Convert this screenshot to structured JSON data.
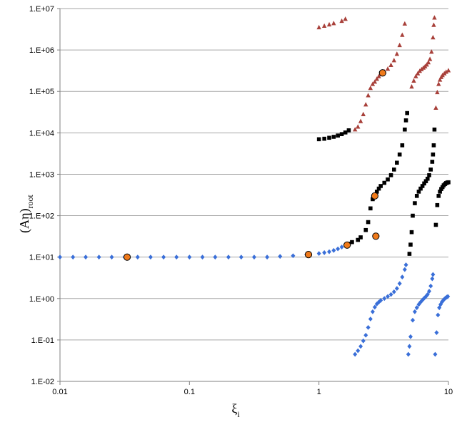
{
  "chart_data": {
    "type": "scatter",
    "xscale": "log",
    "yscale": "log",
    "xlim": [
      0.01,
      10
    ],
    "ylim": [
      0.01,
      10000000
    ],
    "grid": true,
    "legend": "none",
    "xlabel": {
      "main": "ξ",
      "sub": "i"
    },
    "ylabel": {
      "main": "(Aη)",
      "sub": "root"
    },
    "x_ticks": [
      {
        "value": 0.01,
        "label": "0.01"
      },
      {
        "value": 0.1,
        "label": "0.1"
      },
      {
        "value": 1,
        "label": "1"
      },
      {
        "value": 10,
        "label": "10"
      }
    ],
    "y_ticks": [
      {
        "value": 0.01,
        "label": "1.E-02"
      },
      {
        "value": 0.1,
        "label": "1.E-01"
      },
      {
        "value": 1,
        "label": "1.E+00"
      },
      {
        "value": 10,
        "label": "1.E+01"
      },
      {
        "value": 100,
        "label": "1.E+02"
      },
      {
        "value": 1000,
        "label": "1.E+03"
      },
      {
        "value": 10000,
        "label": "1.E+04"
      },
      {
        "value": 100000,
        "label": "1.E+05"
      },
      {
        "value": 1000000,
        "label": "1.E+06"
      },
      {
        "value": 10000000,
        "label": "1.E+07"
      }
    ],
    "series": [
      {
        "marker": "diamond",
        "color": "#3a6fd8",
        "points": [
          [
            0.01,
            10
          ],
          [
            0.0126,
            10
          ],
          [
            0.0158,
            10
          ],
          [
            0.02,
            10
          ],
          [
            0.0251,
            10
          ],
          [
            0.0316,
            10
          ],
          [
            0.0398,
            10
          ],
          [
            0.0501,
            10
          ],
          [
            0.0631,
            10
          ],
          [
            0.0794,
            10
          ],
          [
            0.1,
            10
          ],
          [
            0.126,
            10
          ],
          [
            0.158,
            10
          ],
          [
            0.2,
            10
          ],
          [
            0.251,
            10
          ],
          [
            0.316,
            10
          ],
          [
            0.398,
            10
          ],
          [
            0.501,
            10.4
          ],
          [
            0.631,
            10.8
          ],
          [
            0.8,
            11.5
          ],
          [
            1.0,
            12.2
          ],
          [
            1.1,
            12.8
          ],
          [
            1.2,
            13.5
          ],
          [
            1.3,
            14.5
          ],
          [
            1.4,
            15.8
          ],
          [
            1.5,
            17.5
          ],
          [
            1.6,
            19.5
          ],
          [
            1.9,
            0.045
          ],
          [
            2.0,
            0.055
          ],
          [
            2.1,
            0.07
          ],
          [
            2.2,
            0.095
          ],
          [
            2.3,
            0.13
          ],
          [
            2.4,
            0.2
          ],
          [
            2.5,
            0.32
          ],
          [
            2.6,
            0.48
          ],
          [
            2.7,
            0.62
          ],
          [
            2.8,
            0.74
          ],
          [
            2.9,
            0.82
          ],
          [
            3.0,
            0.9
          ],
          [
            3.2,
            1.0
          ],
          [
            3.4,
            1.12
          ],
          [
            3.6,
            1.25
          ],
          [
            3.8,
            1.45
          ],
          [
            4.0,
            1.75
          ],
          [
            4.2,
            2.3
          ],
          [
            4.4,
            3.3
          ],
          [
            4.6,
            5.0
          ],
          [
            4.7,
            6.5
          ],
          [
            4.9,
            0.045
          ],
          [
            5.0,
            0.07
          ],
          [
            5.1,
            0.12
          ],
          [
            5.3,
            0.3
          ],
          [
            5.5,
            0.48
          ],
          [
            5.7,
            0.6
          ],
          [
            5.9,
            0.72
          ],
          [
            6.1,
            0.82
          ],
          [
            6.3,
            0.92
          ],
          [
            6.5,
            1.02
          ],
          [
            6.7,
            1.12
          ],
          [
            6.9,
            1.25
          ],
          [
            7.1,
            1.5
          ],
          [
            7.3,
            2.0
          ],
          [
            7.5,
            3.0
          ],
          [
            7.6,
            3.8
          ],
          [
            7.9,
            0.045
          ],
          [
            8.1,
            0.15
          ],
          [
            8.3,
            0.4
          ],
          [
            8.5,
            0.6
          ],
          [
            8.7,
            0.72
          ],
          [
            8.9,
            0.82
          ],
          [
            9.1,
            0.9
          ],
          [
            9.3,
            0.97
          ],
          [
            9.5,
            1.03
          ],
          [
            9.7,
            1.08
          ],
          [
            9.9,
            1.12
          ]
        ]
      },
      {
        "marker": "square",
        "color": "#000000",
        "points": [
          [
            1.7,
            21
          ],
          [
            1.8,
            23
          ],
          [
            2.0,
            26
          ],
          [
            2.1,
            30
          ],
          [
            2.3,
            45
          ],
          [
            2.4,
            70
          ],
          [
            2.5,
            150
          ],
          [
            2.6,
            250
          ],
          [
            2.7,
            310
          ],
          [
            2.8,
            380
          ],
          [
            2.9,
            450
          ],
          [
            3.0,
            520
          ],
          [
            3.2,
            620
          ],
          [
            3.4,
            750
          ],
          [
            3.6,
            950
          ],
          [
            3.8,
            1300
          ],
          [
            4.0,
            1900
          ],
          [
            4.2,
            3000
          ],
          [
            4.4,
            5000
          ],
          [
            4.6,
            12000
          ],
          [
            4.7,
            20000
          ],
          [
            4.8,
            30000
          ],
          [
            5.0,
            12
          ],
          [
            5.1,
            20
          ],
          [
            5.2,
            40
          ],
          [
            5.3,
            100
          ],
          [
            5.5,
            200
          ],
          [
            5.7,
            300
          ],
          [
            5.9,
            380
          ],
          [
            6.1,
            450
          ],
          [
            6.3,
            520
          ],
          [
            6.5,
            600
          ],
          [
            6.7,
            680
          ],
          [
            6.9,
            780
          ],
          [
            7.1,
            950
          ],
          [
            7.3,
            1300
          ],
          [
            7.5,
            2000
          ],
          [
            7.6,
            3000
          ],
          [
            7.7,
            5000
          ],
          [
            7.8,
            12000
          ],
          [
            8.0,
            60
          ],
          [
            8.2,
            180
          ],
          [
            8.4,
            300
          ],
          [
            8.6,
            380
          ],
          [
            8.8,
            440
          ],
          [
            9.0,
            490
          ],
          [
            9.2,
            540
          ],
          [
            9.4,
            580
          ],
          [
            9.6,
            610
          ],
          [
            9.8,
            630
          ],
          [
            10.0,
            640
          ],
          [
            1.0,
            7000
          ],
          [
            1.1,
            7200
          ],
          [
            1.2,
            7600
          ],
          [
            1.3,
            8000
          ],
          [
            1.4,
            8600
          ],
          [
            1.5,
            9300
          ],
          [
            1.6,
            10200
          ],
          [
            1.7,
            11500
          ]
        ]
      },
      {
        "marker": "triangle",
        "color": "#a8403a",
        "points": [
          [
            1.0,
            3500000
          ],
          [
            1.1,
            3800000
          ],
          [
            1.2,
            4100000
          ],
          [
            1.3,
            4400000
          ],
          [
            1.5,
            5000000
          ],
          [
            1.6,
            5600000
          ],
          [
            1.9,
            12000
          ],
          [
            2.0,
            14000
          ],
          [
            2.1,
            19000
          ],
          [
            2.2,
            28000
          ],
          [
            2.3,
            48000
          ],
          [
            2.4,
            80000
          ],
          [
            2.5,
            120000
          ],
          [
            2.6,
            150000
          ],
          [
            2.7,
            170000
          ],
          [
            2.8,
            200000
          ],
          [
            2.9,
            230000
          ],
          [
            3.0,
            260000
          ],
          [
            3.2,
            300000
          ],
          [
            3.4,
            350000
          ],
          [
            3.6,
            430000
          ],
          [
            3.8,
            560000
          ],
          [
            4.0,
            800000
          ],
          [
            4.2,
            1300000
          ],
          [
            4.4,
            2300000
          ],
          [
            4.6,
            4300000
          ],
          [
            5.2,
            130000
          ],
          [
            5.4,
            180000
          ],
          [
            5.6,
            230000
          ],
          [
            5.8,
            270000
          ],
          [
            6.0,
            310000
          ],
          [
            6.2,
            340000
          ],
          [
            6.4,
            370000
          ],
          [
            6.6,
            400000
          ],
          [
            6.8,
            440000
          ],
          [
            7.0,
            500000
          ],
          [
            7.2,
            600000
          ],
          [
            7.4,
            900000
          ],
          [
            7.6,
            2000000
          ],
          [
            7.7,
            4000000
          ],
          [
            7.8,
            6000000
          ],
          [
            8.0,
            40000
          ],
          [
            8.2,
            95000
          ],
          [
            8.4,
            150000
          ],
          [
            8.6,
            190000
          ],
          [
            8.8,
            220000
          ],
          [
            9.0,
            245000
          ],
          [
            9.3,
            270000
          ],
          [
            9.6,
            295000
          ],
          [
            10.0,
            320000
          ]
        ]
      },
      {
        "marker": "circle",
        "color": "#f07a1a",
        "stroke": "#000000",
        "points": [
          [
            0.033,
            10
          ],
          [
            0.83,
            11.5
          ],
          [
            1.65,
            19.5
          ],
          [
            2.75,
            32
          ],
          [
            2.7,
            300
          ],
          [
            3.1,
            280000
          ]
        ]
      }
    ]
  }
}
